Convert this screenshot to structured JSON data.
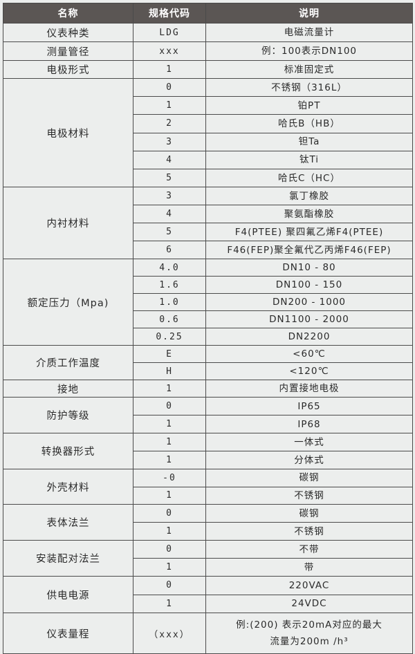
{
  "header": {
    "name": "名称",
    "code": "规格代码",
    "desc": "说明"
  },
  "groups": [
    {
      "name": "仪表种类",
      "rows": [
        {
          "code": "LDG",
          "desc": "电磁流量计"
        }
      ]
    },
    {
      "name": "测量管径",
      "rows": [
        {
          "code": "xxx",
          "desc": "例：100表示DN100"
        }
      ]
    },
    {
      "name": "电极形式",
      "rows": [
        {
          "code": "1",
          "desc": "标准固定式"
        }
      ]
    },
    {
      "name": "电极材料",
      "rows": [
        {
          "code": "0",
          "desc": "不锈钢（316L）"
        },
        {
          "code": "1",
          "desc": "铂PT"
        },
        {
          "code": "2",
          "desc": "哈氏B（HB）"
        },
        {
          "code": "3",
          "desc": "钽Ta"
        },
        {
          "code": "4",
          "desc": "钛Ti"
        },
        {
          "code": "5",
          "desc": "哈氏C（HC）"
        }
      ]
    },
    {
      "name": "内衬材料",
      "rows": [
        {
          "code": "3",
          "desc": "氯丁橡胶"
        },
        {
          "code": "4",
          "desc": "聚氨酯橡胶"
        },
        {
          "code": "5",
          "desc": "F4(PTEE) 聚四氟乙烯F4(PTEE)"
        },
        {
          "code": "6",
          "desc": "F46(FEP)聚全氟代乙丙烯F46(FEP)"
        }
      ]
    },
    {
      "name": "额定压力（Mpa)",
      "rows": [
        {
          "code": "4.0",
          "desc": "DN10 - 80"
        },
        {
          "code": "1.6",
          "desc": "DN100 - 150"
        },
        {
          "code": "1.0",
          "desc": "DN200 - 1000"
        },
        {
          "code": "0.6",
          "desc": "DN1100 - 2000"
        },
        {
          "code": "0.25",
          "desc": "DN2200"
        }
      ]
    },
    {
      "name": "介质工作温度",
      "rows": [
        {
          "code": "E",
          "desc": "<60℃"
        },
        {
          "code": "H",
          "desc": "<120℃"
        }
      ]
    },
    {
      "name": "接地",
      "rows": [
        {
          "code": "1",
          "desc": "内置接地电极"
        }
      ]
    },
    {
      "name": "防护等级",
      "rows": [
        {
          "code": "0",
          "desc": "IP65"
        },
        {
          "code": "1",
          "desc": "IP68"
        }
      ]
    },
    {
      "name": "转换器形式",
      "rows": [
        {
          "code": "1",
          "desc": "一体式"
        },
        {
          "code": "1",
          "desc": "分体式"
        }
      ]
    },
    {
      "name": "外壳材料",
      "rows": [
        {
          "code": "-0",
          "desc": "碳钢"
        },
        {
          "code": "1",
          "desc": "不锈钢"
        }
      ]
    },
    {
      "name": "表体法兰",
      "rows": [
        {
          "code": "0",
          "desc": "碳钢"
        },
        {
          "code": "1",
          "desc": "不锈钢"
        }
      ]
    },
    {
      "name": "安装配对法兰",
      "rows": [
        {
          "code": "0",
          "desc": "不带"
        },
        {
          "code": "1",
          "desc": "带"
        }
      ]
    },
    {
      "name": "供电电源",
      "rows": [
        {
          "code": "0",
          "desc": "220VAC"
        },
        {
          "code": "1",
          "desc": "24VDC"
        }
      ]
    },
    {
      "name": "仪表量程",
      "rows": [
        {
          "code": "（xxx）",
          "desc": "例:(200) 表示20mA对应的最大流量为200m /h³"
        }
      ]
    }
  ]
}
